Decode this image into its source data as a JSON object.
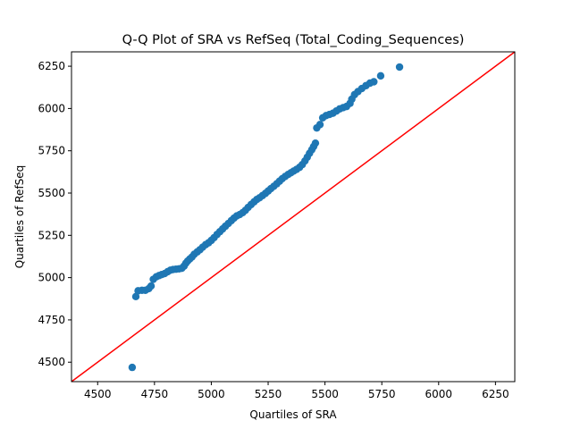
{
  "chart_data": {
    "type": "scatter",
    "title": "Q-Q Plot of SRA vs RefSeq (Total_Coding_Sequences)",
    "xlabel": "Quartiles of SRA",
    "ylabel": "Quartiles of RefSeq",
    "xlim": [
      4385,
      6335
    ],
    "ylim": [
      4385,
      6335
    ],
    "xticks": [
      4500,
      4750,
      5000,
      5250,
      5500,
      5750,
      6000,
      6250
    ],
    "yticks": [
      4500,
      4750,
      5000,
      5250,
      5500,
      5750,
      6000,
      6250
    ],
    "grid": false,
    "point_color": "#1f77b4",
    "reference_line": {
      "color": "#ff0000",
      "from": [
        4385,
        4385
      ],
      "to": [
        6335,
        6335
      ]
    },
    "points": [
      [
        4652,
        4469
      ],
      [
        4668,
        4888
      ],
      [
        4678,
        4922
      ],
      [
        4695,
        4925
      ],
      [
        4710,
        4925
      ],
      [
        4725,
        4935
      ],
      [
        4735,
        4950
      ],
      [
        4745,
        4990
      ],
      [
        4758,
        5005
      ],
      [
        4770,
        5012
      ],
      [
        4782,
        5018
      ],
      [
        4795,
        5024
      ],
      [
        4808,
        5035
      ],
      [
        4820,
        5044
      ],
      [
        4832,
        5048
      ],
      [
        4845,
        5050
      ],
      [
        4858,
        5052
      ],
      [
        4870,
        5055
      ],
      [
        4880,
        5068
      ],
      [
        4888,
        5085
      ],
      [
        4896,
        5098
      ],
      [
        4905,
        5110
      ],
      [
        4915,
        5122
      ],
      [
        4925,
        5138
      ],
      [
        4938,
        5152
      ],
      [
        4950,
        5165
      ],
      [
        4962,
        5180
      ],
      [
        4975,
        5195
      ],
      [
        4988,
        5206
      ],
      [
        5000,
        5220
      ],
      [
        5012,
        5236
      ],
      [
        5025,
        5255
      ],
      [
        5038,
        5272
      ],
      [
        5050,
        5288
      ],
      [
        5062,
        5304
      ],
      [
        5075,
        5320
      ],
      [
        5088,
        5337
      ],
      [
        5100,
        5352
      ],
      [
        5112,
        5365
      ],
      [
        5125,
        5373
      ],
      [
        5138,
        5384
      ],
      [
        5150,
        5398
      ],
      [
        5162,
        5415
      ],
      [
        5175,
        5432
      ],
      [
        5188,
        5448
      ],
      [
        5200,
        5462
      ],
      [
        5212,
        5472
      ],
      [
        5225,
        5485
      ],
      [
        5238,
        5498
      ],
      [
        5250,
        5512
      ],
      [
        5262,
        5526
      ],
      [
        5275,
        5540
      ],
      [
        5288,
        5555
      ],
      [
        5300,
        5570
      ],
      [
        5312,
        5585
      ],
      [
        5325,
        5598
      ],
      [
        5338,
        5610
      ],
      [
        5350,
        5620
      ],
      [
        5362,
        5630
      ],
      [
        5375,
        5640
      ],
      [
        5388,
        5652
      ],
      [
        5400,
        5668
      ],
      [
        5412,
        5690
      ],
      [
        5422,
        5712
      ],
      [
        5432,
        5735
      ],
      [
        5442,
        5756
      ],
      [
        5450,
        5775
      ],
      [
        5458,
        5795
      ],
      [
        5464,
        5885
      ],
      [
        5478,
        5905
      ],
      [
        5490,
        5945
      ],
      [
        5505,
        5958
      ],
      [
        5520,
        5965
      ],
      [
        5535,
        5972
      ],
      [
        5550,
        5985
      ],
      [
        5565,
        5998
      ],
      [
        5580,
        6005
      ],
      [
        5595,
        6012
      ],
      [
        5610,
        6030
      ],
      [
        5618,
        6055
      ],
      [
        5630,
        6082
      ],
      [
        5645,
        6100
      ],
      [
        5662,
        6118
      ],
      [
        5680,
        6135
      ],
      [
        5698,
        6150
      ],
      [
        5715,
        6158
      ],
      [
        5745,
        6193
      ],
      [
        5828,
        6245
      ]
    ]
  }
}
